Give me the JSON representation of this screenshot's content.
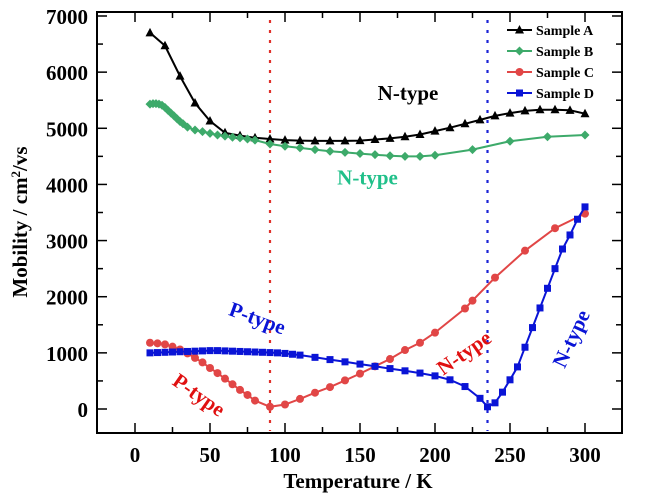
{
  "chart_data": {
    "type": "line",
    "title": "",
    "xlabel": "Temperature / K",
    "ylabel": "Mobility / cm2/vs",
    "ylabel_parts": {
      "main": "Mobility / cm",
      "sup": "2",
      "tail": "/vs"
    },
    "xlim": [
      -25,
      325
    ],
    "ylim": [
      -500,
      7050
    ],
    "xticks": [
      0,
      50,
      100,
      150,
      200,
      250,
      300
    ],
    "xtick_labels": [
      "0",
      "50",
      "100",
      "150",
      "200",
      "250",
      "300"
    ],
    "yticks": [
      0,
      1000,
      2000,
      3000,
      4000,
      5000,
      6000,
      7000
    ],
    "ytick_labels": [
      "0",
      "1000",
      "2000",
      "3000",
      "4000",
      "5000",
      "6000",
      "7000"
    ],
    "grid": false,
    "legend_position": "top-right",
    "series": [
      {
        "name": "Sample A",
        "color": "#000000",
        "marker": "triangle",
        "x": [
          10,
          20,
          30,
          40,
          50,
          60,
          70,
          80,
          90,
          100,
          110,
          120,
          130,
          140,
          150,
          160,
          170,
          180,
          190,
          200,
          210,
          220,
          230,
          240,
          250,
          260,
          270,
          280,
          290,
          300
        ],
        "y": [
          6700,
          6470,
          5930,
          5450,
          5130,
          4920,
          4870,
          4830,
          4810,
          4790,
          4780,
          4775,
          4775,
          4775,
          4780,
          4800,
          4820,
          4850,
          4890,
          4950,
          5010,
          5080,
          5150,
          5220,
          5270,
          5310,
          5330,
          5330,
          5320,
          5260
        ]
      },
      {
        "name": "Sample B",
        "color": "#3daa6a",
        "marker": "diamond",
        "x": [
          10,
          12,
          14,
          16,
          18,
          20,
          22,
          24,
          26,
          28,
          30,
          32,
          35,
          40,
          45,
          50,
          55,
          60,
          65,
          70,
          75,
          80,
          90,
          100,
          110,
          120,
          130,
          140,
          150,
          160,
          170,
          180,
          190,
          200,
          225,
          250,
          275,
          300
        ],
        "y": [
          5430,
          5440,
          5440,
          5430,
          5410,
          5370,
          5320,
          5270,
          5220,
          5170,
          5120,
          5080,
          5020,
          4970,
          4940,
          4910,
          4880,
          4860,
          4840,
          4830,
          4810,
          4790,
          4720,
          4680,
          4650,
          4620,
          4590,
          4570,
          4550,
          4530,
          4510,
          4500,
          4500,
          4520,
          4620,
          4770,
          4850,
          4880
        ]
      },
      {
        "name": "Sample C",
        "color": "#e14646",
        "marker": "circle",
        "x": [
          10,
          15,
          20,
          25,
          30,
          35,
          40,
          45,
          50,
          55,
          60,
          65,
          70,
          75,
          80,
          90,
          100,
          110,
          120,
          130,
          140,
          150,
          160,
          170,
          180,
          190,
          200,
          220,
          225,
          240,
          260,
          280,
          300
        ],
        "y": [
          1180,
          1170,
          1150,
          1110,
          1060,
          990,
          910,
          830,
          730,
          640,
          540,
          440,
          340,
          250,
          150,
          40,
          80,
          180,
          290,
          390,
          510,
          630,
          760,
          890,
          1050,
          1180,
          1360,
          1790,
          1930,
          2340,
          2820,
          3220,
          3480
        ]
      },
      {
        "name": "Sample D",
        "color": "#0a14d6",
        "marker": "square",
        "x": [
          10,
          15,
          20,
          25,
          30,
          35,
          40,
          45,
          50,
          55,
          60,
          65,
          70,
          75,
          80,
          85,
          90,
          95,
          100,
          105,
          110,
          120,
          130,
          140,
          150,
          160,
          170,
          180,
          190,
          200,
          210,
          220,
          230,
          235,
          240,
          245,
          250,
          255,
          260,
          265,
          270,
          275,
          280,
          285,
          290,
          295,
          300
        ],
        "y": [
          1000,
          1005,
          1010,
          1015,
          1020,
          1025,
          1030,
          1035,
          1040,
          1040,
          1035,
          1030,
          1025,
          1020,
          1015,
          1010,
          1005,
          1000,
          990,
          975,
          960,
          920,
          880,
          840,
          800,
          760,
          720,
          680,
          640,
          590,
          520,
          400,
          190,
          40,
          110,
          300,
          520,
          750,
          1100,
          1450,
          1800,
          2150,
          2500,
          2850,
          3100,
          3380,
          3600
        ]
      }
    ],
    "vertical_lines": [
      {
        "x": 90,
        "color": "#e0302a",
        "style": "dotted"
      },
      {
        "x": 235,
        "color": "#1a22d6",
        "style": "dotted"
      }
    ],
    "annotations": [
      {
        "text": "N-type",
        "color": "#000000",
        "x": 182,
        "y": 5500,
        "rotation": 0
      },
      {
        "text": "N-type",
        "color": "#20c08a",
        "x": 155,
        "y": 4000,
        "rotation": 0
      },
      {
        "text": "P-type",
        "color": "#0a14d6",
        "x": 80,
        "y": 1500,
        "rotation": 20
      },
      {
        "text": "P-type",
        "color": "#e01010",
        "x": 40,
        "y": 150,
        "rotation": 35
      },
      {
        "text": "N-type",
        "color": "#e01010",
        "x": 222,
        "y": 900,
        "rotation": -35
      },
      {
        "text": "N-type",
        "color": "#0a14d6",
        "x": 295,
        "y": 1200,
        "rotation": -65
      }
    ]
  }
}
